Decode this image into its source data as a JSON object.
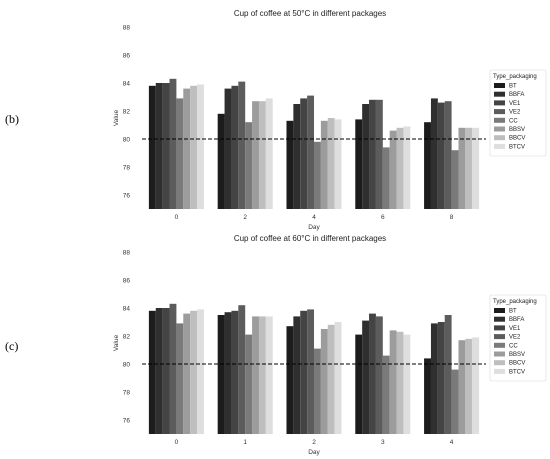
{
  "panel_labels": [
    "(b)",
    "(c)"
  ],
  "chart_data": [
    {
      "type": "bar",
      "title": "Cup of coffee at 50°C in different packages",
      "xlabel": "Day",
      "ylabel": "Value",
      "ylim": [
        75,
        88
      ],
      "yticks": [
        76,
        78,
        80,
        82,
        84,
        86,
        88
      ],
      "grid": false,
      "reference_line": {
        "y": 80,
        "style": "dashed"
      },
      "legend": {
        "title": "Type_packaging",
        "placement": "right"
      },
      "categories": [
        "0",
        "2",
        "4",
        "6",
        "8"
      ],
      "series": [
        {
          "name": "BT",
          "color": "#1c1c1c",
          "values": [
            83.8,
            81.8,
            81.3,
            81.4,
            81.2
          ]
        },
        {
          "name": "BBFA",
          "color": "#2f2f2f",
          "values": [
            84.0,
            83.6,
            82.5,
            82.5,
            82.9
          ]
        },
        {
          "name": "VE1",
          "color": "#444444",
          "values": [
            84.0,
            83.8,
            82.9,
            82.8,
            82.6
          ]
        },
        {
          "name": "VE2",
          "color": "#5c5c5c",
          "values": [
            84.3,
            84.1,
            83.1,
            82.8,
            82.7
          ]
        },
        {
          "name": "CC",
          "color": "#7a7a7a",
          "values": [
            82.9,
            81.2,
            79.8,
            79.4,
            79.2
          ]
        },
        {
          "name": "BBSV",
          "color": "#9c9c9c",
          "values": [
            83.6,
            82.7,
            81.3,
            80.6,
            80.8
          ]
        },
        {
          "name": "BBCV",
          "color": "#bebebe",
          "values": [
            83.8,
            82.7,
            81.5,
            80.8,
            80.8
          ]
        },
        {
          "name": "BTCV",
          "color": "#dedede",
          "values": [
            83.9,
            82.9,
            81.4,
            80.9,
            80.8
          ]
        }
      ]
    },
    {
      "type": "bar",
      "title": "Cup of coffee at 60°C in different packages",
      "xlabel": "Day",
      "ylabel": "Value",
      "ylim": [
        75,
        88
      ],
      "yticks": [
        76,
        78,
        80,
        82,
        84,
        86,
        88
      ],
      "grid": false,
      "reference_line": {
        "y": 80,
        "style": "dashed"
      },
      "legend": {
        "title": "Type_packaging",
        "placement": "right"
      },
      "categories": [
        "0",
        "1",
        "2",
        "3",
        "4"
      ],
      "series": [
        {
          "name": "BT",
          "color": "#1c1c1c",
          "values": [
            83.8,
            83.5,
            82.7,
            82.1,
            80.4
          ]
        },
        {
          "name": "BBFA",
          "color": "#2f2f2f",
          "values": [
            84.0,
            83.7,
            83.4,
            83.1,
            82.9
          ]
        },
        {
          "name": "VE1",
          "color": "#444444",
          "values": [
            84.0,
            83.8,
            83.8,
            83.6,
            83.0
          ]
        },
        {
          "name": "VE2",
          "color": "#5c5c5c",
          "values": [
            84.3,
            84.2,
            83.9,
            83.4,
            83.5
          ]
        },
        {
          "name": "CC",
          "color": "#7a7a7a",
          "values": [
            82.9,
            82.1,
            81.1,
            80.6,
            79.6
          ]
        },
        {
          "name": "BBSV",
          "color": "#9c9c9c",
          "values": [
            83.6,
            83.4,
            82.5,
            82.4,
            81.7
          ]
        },
        {
          "name": "BBCV",
          "color": "#bebebe",
          "values": [
            83.8,
            83.4,
            82.8,
            82.3,
            81.8
          ]
        },
        {
          "name": "BTCV",
          "color": "#dedede",
          "values": [
            83.9,
            83.4,
            83.0,
            82.1,
            81.9
          ]
        }
      ]
    }
  ]
}
